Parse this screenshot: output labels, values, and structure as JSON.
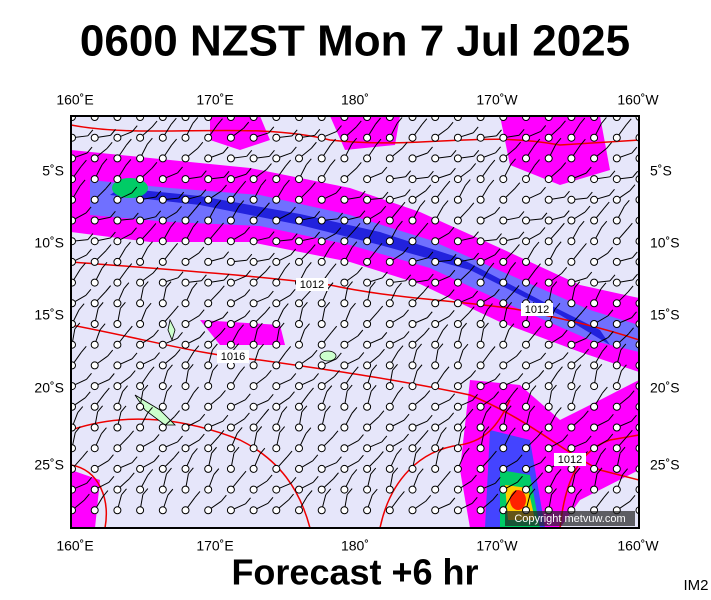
{
  "header": {
    "title": "0600 NZST Mon 7 Jul 2025"
  },
  "map": {
    "lon_labels": [
      "160˚E",
      "170˚E",
      "180˚",
      "170˚W",
      "160˚W"
    ],
    "lat_labels": [
      "5˚S",
      "10˚S",
      "15˚S",
      "20˚S",
      "25˚S"
    ],
    "isobar_labels": [
      "1012",
      "1016",
      "1012",
      "1012"
    ],
    "copyright": "Copyright metvuw.com"
  },
  "footer": {
    "caption": "Forecast +6 hr",
    "image_id": "IM2"
  }
}
